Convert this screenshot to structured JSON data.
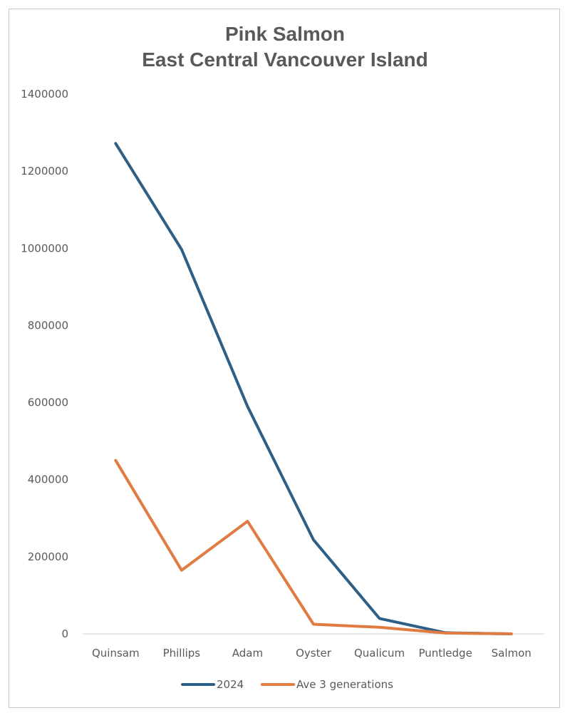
{
  "chart_data": {
    "type": "line",
    "title": "Pink Salmon",
    "subtitle": "East Central Vancouver Island",
    "categories": [
      "Quinsam",
      "Phillips",
      "Adam",
      "Oyster",
      "Qualicum",
      "Puntledge",
      "Salmon"
    ],
    "series": [
      {
        "name": "2024",
        "color": "#2e5f86",
        "values": [
          1272000,
          997000,
          590000,
          244000,
          40000,
          3000,
          0
        ]
      },
      {
        "name": "Ave 3 generations",
        "color": "#e07b42",
        "values": [
          450000,
          165000,
          292000,
          25000,
          17000,
          2000,
          0
        ]
      }
    ],
    "ylim": [
      0,
      1400000
    ],
    "yticks": [
      0,
      200000,
      400000,
      600000,
      800000,
      1000000,
      1200000,
      1400000
    ],
    "xlabel": "",
    "ylabel": "",
    "grid": false,
    "legend": "bottom"
  }
}
